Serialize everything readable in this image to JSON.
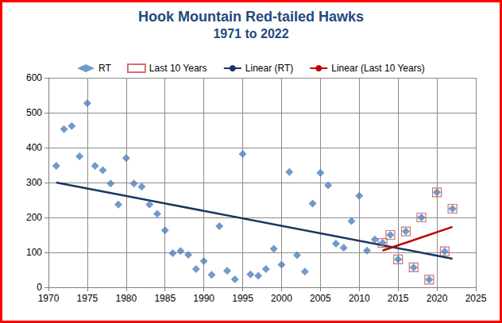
{
  "chart_data": {
    "type": "scatter",
    "title": "Hook Mountain Red-tailed Hawks",
    "subtitle": "1971 to 2022",
    "xlim": [
      1970,
      2025
    ],
    "xticks": [
      1970,
      1975,
      1980,
      1985,
      1990,
      1995,
      2000,
      2005,
      2010,
      2015,
      2020,
      2025
    ],
    "ylim": [
      0,
      600
    ],
    "yticks": [
      0,
      100,
      200,
      300,
      400,
      500,
      600
    ],
    "grid": true,
    "legend": "top",
    "series": [
      {
        "name": "RT",
        "type": "scatter",
        "marker": "diamond",
        "color": "#4f81bd",
        "x": [
          1971,
          1972,
          1973,
          1974,
          1975,
          1976,
          1977,
          1978,
          1979,
          1980,
          1981,
          1982,
          1983,
          1984,
          1985,
          1986,
          1987,
          1988,
          1989,
          1990,
          1991,
          1992,
          1993,
          1994,
          1995,
          1996,
          1997,
          1998,
          1999,
          2000,
          2001,
          2002,
          2003,
          2004,
          2005,
          2006,
          2007,
          2008,
          2009,
          2010,
          2011,
          2012,
          2013,
          2014,
          2015,
          2016,
          2017,
          2018,
          2019,
          2020,
          2021,
          2022
        ],
        "values": [
          348,
          453,
          462,
          375,
          527,
          348,
          335,
          297,
          237,
          370,
          297,
          288,
          237,
          210,
          163,
          98,
          104,
          93,
          52,
          75,
          36,
          175,
          47,
          23,
          382,
          37,
          33,
          52,
          110,
          65,
          330,
          92,
          45,
          240,
          328,
          292,
          125,
          113,
          190,
          262,
          105,
          137,
          127,
          150,
          80,
          160,
          57,
          200,
          22,
          272,
          103,
          225
        ]
      },
      {
        "name": "Last 10 Years",
        "type": "scatter",
        "marker": "open_square",
        "color": "#c0504d",
        "x": [
          2013,
          2014,
          2015,
          2016,
          2017,
          2018,
          2019,
          2020,
          2021,
          2022
        ],
        "values": [
          127,
          150,
          80,
          160,
          57,
          200,
          22,
          272,
          103,
          225
        ]
      },
      {
        "name": "Linear (RT)",
        "type": "line",
        "line_style": "solid",
        "color": "#17375e",
        "x": [
          1971,
          2022
        ],
        "values": [
          300,
          82
        ]
      },
      {
        "name": "Linear (Last 10 Years)",
        "type": "line",
        "line_style": "solid",
        "color": "#c00000",
        "x": [
          2013,
          2022
        ],
        "values": [
          105,
          173
        ]
      }
    ]
  }
}
